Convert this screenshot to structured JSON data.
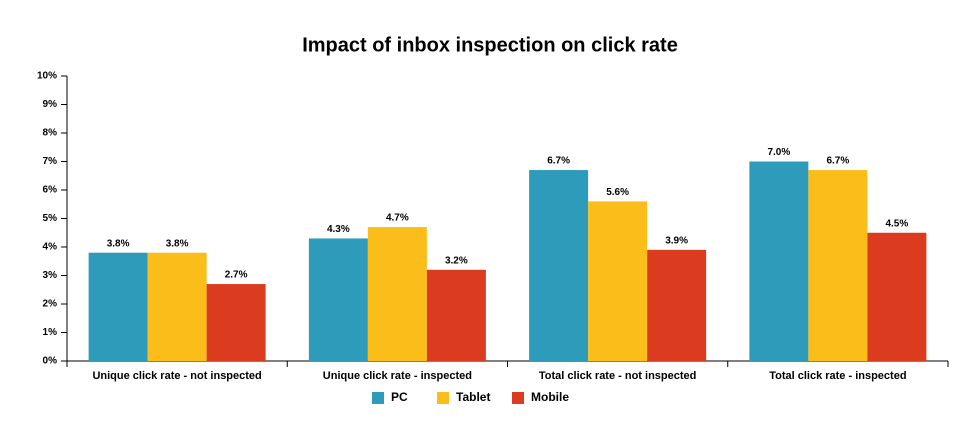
{
  "chart_data": {
    "type": "bar",
    "title": "Impact of inbox inspection on click rate",
    "categories": [
      "Unique click rate - not inspected",
      "Unique click rate - inspected",
      "Total click rate - not inspected",
      "Total click rate - inspected"
    ],
    "series": [
      {
        "name": "PC",
        "color": "#2e9bbb",
        "values": [
          3.8,
          4.3,
          6.7,
          7.0
        ],
        "value_labels": [
          "3.8%",
          "4.3%",
          "6.7%",
          "7.0%"
        ]
      },
      {
        "name": "Tablet",
        "color": "#fbbd19",
        "values": [
          3.8,
          4.7,
          5.6,
          6.7
        ],
        "value_labels": [
          "3.8%",
          "4.7%",
          "5.6%",
          "6.7%"
        ]
      },
      {
        "name": "Mobile",
        "color": "#db3b1f",
        "values": [
          2.7,
          3.2,
          3.9,
          4.5
        ],
        "value_labels": [
          "2.7%",
          "3.2%",
          "3.9%",
          "4.5%"
        ]
      }
    ],
    "ylim": [
      0,
      10
    ],
    "yticks": [
      {
        "value": 0,
        "label": "0%"
      },
      {
        "value": 1,
        "label": "1%"
      },
      {
        "value": 2,
        "label": "2%"
      },
      {
        "value": 3,
        "label": "3%"
      },
      {
        "value": 4,
        "label": "4%"
      },
      {
        "value": 5,
        "label": "5%"
      },
      {
        "value": 6,
        "label": "6%"
      },
      {
        "value": 7,
        "label": "7%"
      },
      {
        "value": 8,
        "label": "8%"
      },
      {
        "value": 9,
        "label": "9%"
      },
      {
        "value": 10,
        "label": "10%"
      }
    ],
    "grid": false,
    "legend": "bottom"
  }
}
